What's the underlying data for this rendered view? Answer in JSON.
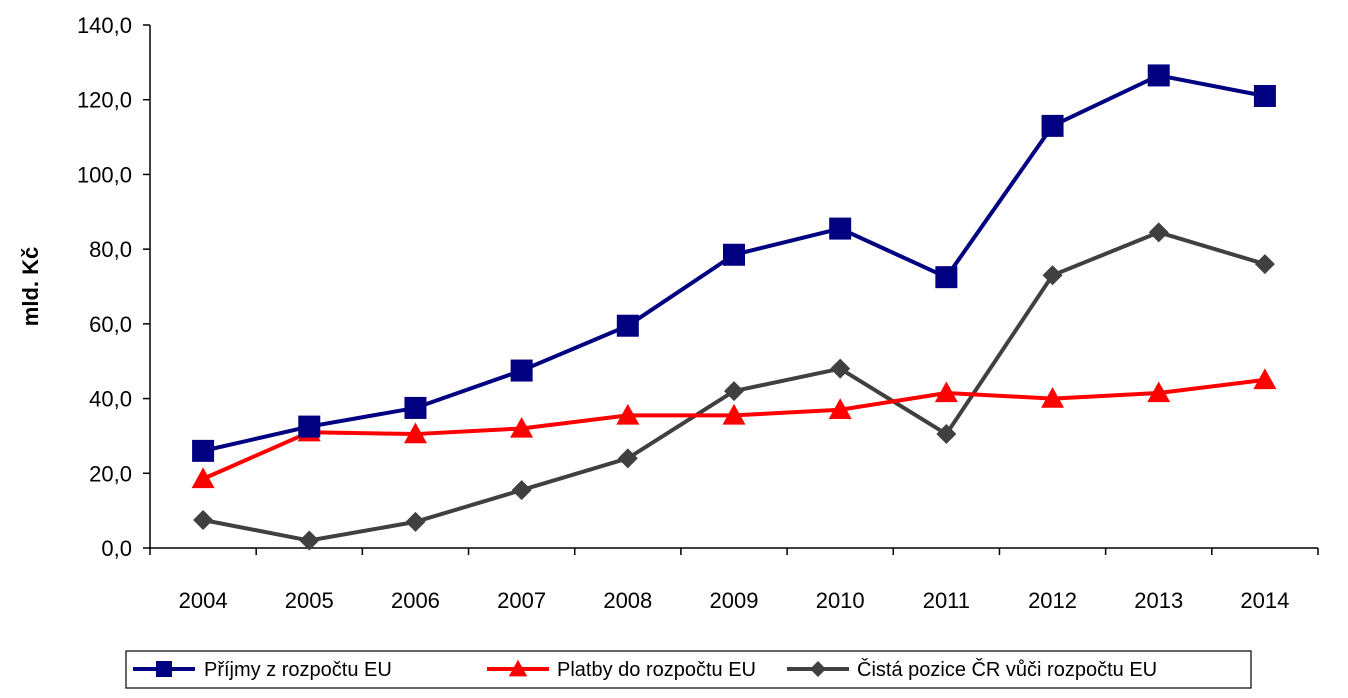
{
  "chart_data": {
    "type": "line",
    "ylabel": "mld. Kč",
    "xlabel": "",
    "ylim": [
      0,
      140
    ],
    "ytick_step": 20,
    "ytick_labels": [
      "0,0",
      "20,0",
      "40,0",
      "60,0",
      "80,0",
      "100,0",
      "120,0",
      "140,0"
    ],
    "categories": [
      "2004",
      "2005",
      "2006",
      "2007",
      "2008",
      "2009",
      "2010",
      "2011",
      "2012",
      "2013",
      "2014"
    ],
    "grid": false,
    "legend_position": "bottom",
    "series": [
      {
        "name": "Příjmy z rozpočtu EU",
        "color": "#000080",
        "marker": "square",
        "values": [
          26.0,
          32.5,
          37.5,
          47.5,
          59.5,
          78.5,
          85.5,
          72.5,
          113.0,
          126.5,
          121.0
        ]
      },
      {
        "name": "Platby do rozpočtu EU",
        "color": "#ff0000",
        "marker": "triangle",
        "values": [
          18.5,
          31.0,
          30.5,
          32.0,
          35.5,
          35.5,
          37.0,
          41.5,
          40.0,
          41.5,
          45.0
        ]
      },
      {
        "name": "Čistá pozice ČR vůči rozpočtu EU",
        "color": "#404040",
        "marker": "diamond",
        "values": [
          7.5,
          2.0,
          7.0,
          15.5,
          24.0,
          42.0,
          48.0,
          30.5,
          73.0,
          84.5,
          76.0
        ]
      }
    ]
  }
}
